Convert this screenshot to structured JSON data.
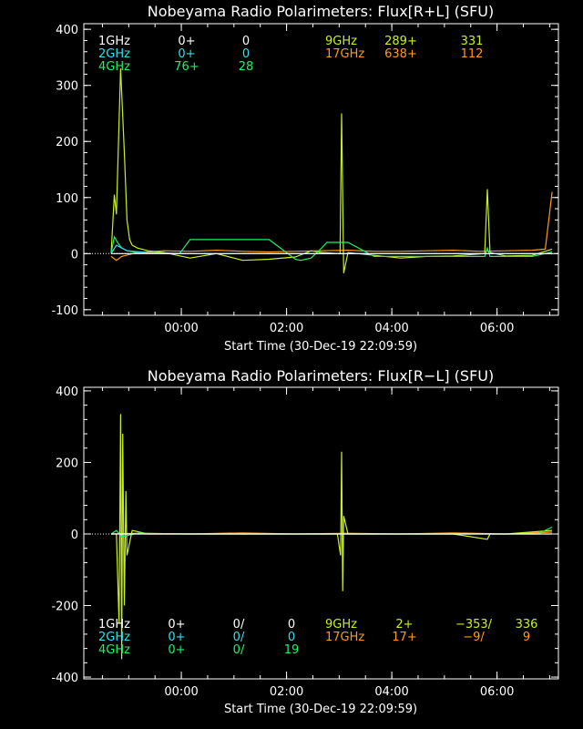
{
  "colors": {
    "background": "#000000",
    "axes": "#ffffff",
    "ch_1GHz": "#ffffff",
    "ch_2GHz": "#33ddee",
    "ch_4GHz": "#22ee66",
    "ch_9GHz": "#c8f020",
    "ch_17GHz": "#ff9a1a"
  },
  "chart_data": [
    {
      "type": "line",
      "title": "Nobeyama Radio Polarimeters: Flux[R+L] (SFU)",
      "xlabel": "Start Time (30-Dec-19 22:09:59)",
      "ylabel": "",
      "ylim": [
        -110,
        410
      ],
      "xlim_hours_since_start": [
        -0.02,
        9.0
      ],
      "yticks": [
        -100,
        0,
        100,
        200,
        300,
        400
      ],
      "ytick_labels": [
        "-100",
        "0",
        "100",
        "200",
        "300",
        "400"
      ],
      "xticks": [
        1.8336,
        3.8336,
        5.8336,
        7.8336
      ],
      "xtick_labels": [
        "00:00",
        "02:00",
        "04:00",
        "06:00"
      ],
      "legend": {
        "left": [
          {
            "freq": "1GHz",
            "a": "0+",
            "b": "0",
            "color_key": "ch_1GHz"
          },
          {
            "freq": "2GHz",
            "a": "0+",
            "b": "0",
            "color_key": "ch_2GHz"
          },
          {
            "freq": "4GHz",
            "a": "76+",
            "b": "28",
            "color_key": "ch_4GHz"
          }
        ],
        "right": [
          {
            "freq": "9GHz",
            "a": "289+",
            "b": "331",
            "color_key": "ch_9GHz"
          },
          {
            "freq": "17GHz",
            "a": "638+",
            "b": "112",
            "color_key": "ch_17GHz"
          }
        ]
      },
      "series": [
        {
          "name": "17GHz",
          "color_key": "ch_17GHz",
          "x": [
            0.5,
            0.6,
            0.7,
            1.0,
            1.5,
            2.0,
            2.5,
            3.0,
            3.5,
            4.0,
            4.5,
            5.0,
            5.5,
            6.0,
            6.5,
            7.0,
            7.5,
            8.0,
            8.5,
            8.75,
            8.88
          ],
          "y": [
            -5,
            -12,
            -5,
            2,
            5,
            4,
            6,
            4,
            3,
            4,
            5,
            6,
            4,
            4,
            5,
            6,
            4,
            5,
            6,
            8,
            110
          ]
        },
        {
          "name": "9GHz",
          "color_key": "ch_9GHz",
          "x": [
            0.5,
            0.56,
            0.6,
            0.68,
            0.75,
            0.8,
            0.85,
            0.9,
            1.0,
            1.2,
            1.5,
            2.0,
            2.5,
            3.0,
            3.5,
            4.0,
            4.3,
            4.5,
            4.85,
            4.88,
            4.92,
            5.0,
            5.5,
            6.0,
            6.5,
            7.0,
            7.6,
            7.65,
            7.7,
            8.0,
            8.5,
            8.88
          ],
          "y": [
            0,
            105,
            70,
            330,
            180,
            60,
            25,
            15,
            10,
            5,
            2,
            -8,
            0,
            -12,
            -10,
            -6,
            5,
            2,
            0,
            250,
            -35,
            2,
            -3,
            -8,
            -5,
            -4,
            0,
            115,
            2,
            -4,
            -3,
            8
          ]
        },
        {
          "name": "4GHz",
          "color_key": "ch_4GHz",
          "x": [
            0.5,
            0.56,
            0.62,
            0.7,
            0.8,
            1.0,
            1.5,
            1.8,
            2.0,
            2.5,
            2.6,
            3.0,
            3.4,
            3.5,
            4.0,
            4.1,
            4.3,
            4.5,
            4.6,
            5.0,
            5.5,
            6.0,
            7.0,
            7.6,
            7.65,
            7.7,
            8.0,
            8.5,
            8.88
          ],
          "y": [
            0,
            30,
            20,
            10,
            5,
            2,
            0,
            0,
            25,
            25,
            25,
            25,
            25,
            25,
            -10,
            -12,
            -8,
            10,
            20,
            20,
            -5,
            -5,
            -5,
            -5,
            10,
            -5,
            -5,
            -5,
            3
          ]
        },
        {
          "name": "2GHz",
          "color_key": "ch_2GHz",
          "x": [
            0.5,
            0.6,
            0.8,
            1.2,
            2.0,
            3.0,
            4.0,
            5.0,
            6.0,
            7.0,
            8.0,
            8.88
          ],
          "y": [
            0,
            15,
            5,
            2,
            0,
            0,
            0,
            0,
            0,
            0,
            0,
            0
          ]
        },
        {
          "name": "1GHz",
          "color_key": "ch_1GHz",
          "x": [
            0.5,
            8.88
          ],
          "y": [
            0,
            0
          ]
        }
      ]
    },
    {
      "type": "line",
      "title": "Nobeyama Radio Polarimeters: Flux[R−L] (SFU)",
      "xlabel": "Start Time (30-Dec-19 22:09:59)",
      "ylabel": "",
      "ylim": [
        -405,
        410
      ],
      "xlim_hours_since_start": [
        -0.02,
        9.0
      ],
      "yticks": [
        -400,
        -200,
        0,
        200,
        400
      ],
      "ytick_labels": [
        "-400",
        "-200",
        "0",
        "200",
        "400"
      ],
      "xticks": [
        1.8336,
        3.8336,
        5.8336,
        7.8336
      ],
      "xtick_labels": [
        "00:00",
        "02:00",
        "04:00",
        "06:00"
      ],
      "legend": {
        "left": [
          {
            "freq": "1GHz",
            "a": "0+",
            "b": "0/",
            "c": "0",
            "color_key": "ch_1GHz"
          },
          {
            "freq": "2GHz",
            "a": "0+",
            "b": "0/",
            "c": "0",
            "color_key": "ch_2GHz"
          },
          {
            "freq": "4GHz",
            "a": "0+",
            "b": "0/",
            "c": "19",
            "color_key": "ch_4GHz"
          }
        ],
        "right": [
          {
            "freq": "9GHz",
            "a": "2+",
            "b": "−353/",
            "c": "336",
            "color_key": "ch_9GHz"
          },
          {
            "freq": "17GHz",
            "a": "17+",
            "b": "−9/",
            "c": "9",
            "color_key": "ch_17GHz"
          }
        ]
      },
      "series": [
        {
          "name": "17GHz",
          "color_key": "ch_17GHz",
          "x": [
            0.5,
            1.0,
            2.0,
            3.0,
            4.0,
            5.0,
            6.0,
            7.0,
            8.0,
            8.88
          ],
          "y": [
            0,
            2,
            0,
            3,
            0,
            2,
            0,
            3,
            0,
            5
          ]
        },
        {
          "name": "9GHz",
          "color_key": "ch_9GHz",
          "x": [
            0.5,
            0.6,
            0.65,
            0.68,
            0.7,
            0.72,
            0.75,
            0.78,
            0.8,
            0.9,
            1.2,
            2.0,
            3.0,
            4.0,
            4.8,
            4.86,
            4.88,
            4.9,
            4.92,
            5.0,
            6.0,
            7.0,
            7.65,
            7.7,
            8.0,
            8.88
          ],
          "y": [
            0,
            0,
            -250,
            335,
            -350,
            280,
            -200,
            120,
            -60,
            10,
            0,
            0,
            0,
            0,
            0,
            -60,
            230,
            -160,
            50,
            0,
            0,
            0,
            -15,
            0,
            0,
            10
          ]
        },
        {
          "name": "4GHz",
          "color_key": "ch_4GHz",
          "x": [
            0.5,
            0.6,
            0.7,
            1.0,
            2.0,
            4.0,
            6.0,
            8.0,
            8.6,
            8.88
          ],
          "y": [
            0,
            10,
            -8,
            2,
            0,
            0,
            0,
            0,
            0,
            19
          ]
        },
        {
          "name": "1GHz",
          "color_key": "ch_1GHz",
          "x": [
            0.5,
            8.88
          ],
          "y": [
            0,
            0
          ]
        }
      ]
    }
  ]
}
